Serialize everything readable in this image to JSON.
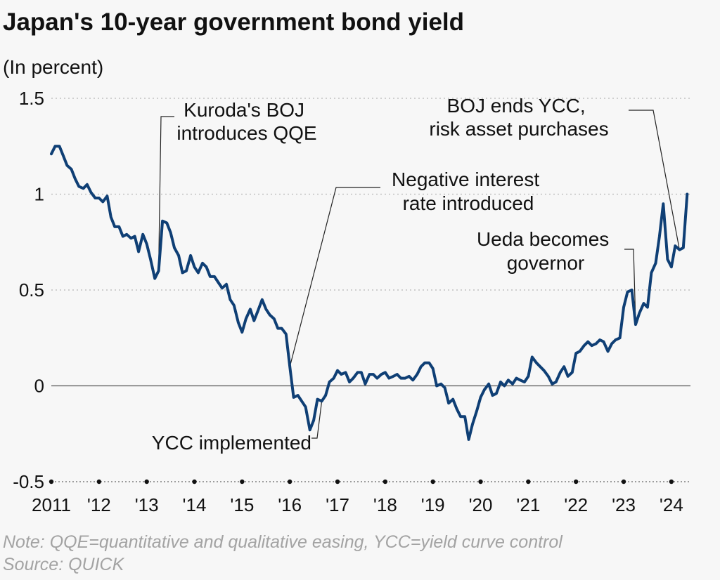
{
  "title": "Japan's 10-year government bond yield",
  "subtitle": "(In percent)",
  "note": "Note: QQE=quantitative and qualitative easing, YCC=yield curve control",
  "source": "Source: QUICK",
  "colors": {
    "line": "#0f3f75",
    "grid": "#b7b7b7",
    "background": "#f7f7f7"
  },
  "chart_data": {
    "type": "line",
    "title": "Japan's 10-year government bond yield",
    "ylabel": "(In percent)",
    "ylim": [
      -0.5,
      1.5
    ],
    "yticks": [
      -0.5,
      0,
      0.5,
      1,
      1.5
    ],
    "ytick_labels": [
      "-0.5",
      "0",
      "0.5",
      "1",
      "1.5"
    ],
    "xlim": [
      2011.0,
      2024.4
    ],
    "xticks": [
      2011,
      2012,
      2013,
      2014,
      2015,
      2016,
      2017,
      2018,
      2019,
      2020,
      2021,
      2022,
      2023,
      2024
    ],
    "xtick_labels": [
      "2011",
      "'12",
      "'13",
      "'14",
      "'15",
      "'16",
      "'17",
      "'18",
      "'19",
      "'20",
      "'21",
      "'22",
      "'23",
      "'24"
    ],
    "grid": "dotted horizontal",
    "series": [
      {
        "x": [
          2011.0,
          2011.08,
          2011.17,
          2011.25,
          2011.33,
          2011.42,
          2011.5,
          2011.58,
          2011.67,
          2011.75,
          2011.83,
          2011.92,
          2012.0,
          2012.08,
          2012.17,
          2012.25,
          2012.33,
          2012.42,
          2012.5,
          2012.58,
          2012.67,
          2012.75,
          2012.83,
          2012.92,
          2013.0,
          2013.08,
          2013.17,
          2013.25,
          2013.33,
          2013.42,
          2013.5,
          2013.58,
          2013.67,
          2013.75,
          2013.83,
          2013.92,
          2014.0,
          2014.08,
          2014.17,
          2014.25,
          2014.33,
          2014.42,
          2014.5,
          2014.58,
          2014.67,
          2014.75,
          2014.83,
          2014.92,
          2015.0,
          2015.08,
          2015.17,
          2015.25,
          2015.33,
          2015.42,
          2015.5,
          2015.58,
          2015.67,
          2015.75,
          2015.83,
          2015.92,
          2016.0,
          2016.08,
          2016.17,
          2016.25,
          2016.33,
          2016.42,
          2016.5,
          2016.58,
          2016.67,
          2016.75,
          2016.83,
          2016.92,
          2017.0,
          2017.08,
          2017.17,
          2017.25,
          2017.33,
          2017.42,
          2017.5,
          2017.58,
          2017.67,
          2017.75,
          2017.83,
          2017.92,
          2018.0,
          2018.08,
          2018.17,
          2018.25,
          2018.33,
          2018.42,
          2018.5,
          2018.58,
          2018.67,
          2018.75,
          2018.83,
          2018.92,
          2019.0,
          2019.08,
          2019.17,
          2019.25,
          2019.33,
          2019.42,
          2019.5,
          2019.58,
          2019.67,
          2019.75,
          2019.83,
          2019.92,
          2020.0,
          2020.08,
          2020.17,
          2020.25,
          2020.33,
          2020.42,
          2020.5,
          2020.58,
          2020.67,
          2020.75,
          2020.83,
          2020.92,
          2021.0,
          2021.08,
          2021.17,
          2021.25,
          2021.33,
          2021.42,
          2021.5,
          2021.58,
          2021.67,
          2021.75,
          2021.83,
          2021.92,
          2022.0,
          2022.08,
          2022.17,
          2022.25,
          2022.33,
          2022.42,
          2022.5,
          2022.58,
          2022.67,
          2022.75,
          2022.83,
          2022.92,
          2023.0,
          2023.08,
          2023.17,
          2023.25,
          2023.33,
          2023.42,
          2023.5,
          2023.58,
          2023.67,
          2023.75,
          2023.83,
          2023.92,
          2024.0,
          2024.08,
          2024.17,
          2024.25,
          2024.33
        ],
        "y": [
          1.21,
          1.25,
          1.25,
          1.2,
          1.15,
          1.13,
          1.08,
          1.04,
          1.03,
          1.05,
          1.01,
          0.98,
          0.98,
          0.96,
          0.99,
          0.88,
          0.83,
          0.83,
          0.78,
          0.79,
          0.77,
          0.78,
          0.7,
          0.79,
          0.74,
          0.66,
          0.56,
          0.6,
          0.86,
          0.85,
          0.8,
          0.72,
          0.68,
          0.59,
          0.6,
          0.68,
          0.62,
          0.59,
          0.64,
          0.62,
          0.57,
          0.57,
          0.54,
          0.51,
          0.53,
          0.45,
          0.42,
          0.33,
          0.28,
          0.35,
          0.4,
          0.34,
          0.39,
          0.45,
          0.4,
          0.37,
          0.35,
          0.3,
          0.3,
          0.27,
          0.1,
          -0.06,
          -0.05,
          -0.08,
          -0.11,
          -0.23,
          -0.18,
          -0.07,
          -0.08,
          -0.05,
          0.02,
          0.04,
          0.08,
          0.06,
          0.07,
          0.02,
          0.04,
          0.07,
          0.07,
          0.01,
          0.06,
          0.06,
          0.04,
          0.06,
          0.07,
          0.04,
          0.05,
          0.06,
          0.04,
          0.04,
          0.05,
          0.03,
          0.06,
          0.1,
          0.12,
          0.12,
          0.09,
          0.0,
          0.01,
          -0.01,
          -0.09,
          -0.07,
          -0.12,
          -0.16,
          -0.16,
          -0.28,
          -0.2,
          -0.13,
          -0.06,
          -0.02,
          0.01,
          -0.05,
          -0.04,
          0.02,
          0.0,
          0.03,
          0.01,
          0.04,
          0.03,
          0.02,
          0.05,
          0.15,
          0.12,
          0.1,
          0.08,
          0.05,
          0.01,
          0.02,
          0.07,
          0.1,
          0.05,
          0.07,
          0.17,
          0.18,
          0.21,
          0.23,
          0.21,
          0.22,
          0.24,
          0.23,
          0.18,
          0.22,
          0.24,
          0.25,
          0.41,
          0.49,
          0.5,
          0.32,
          0.38,
          0.43,
          0.41,
          0.59,
          0.64,
          0.78,
          0.95,
          0.66,
          0.62,
          0.73,
          0.71,
          0.72,
          1.0
        ]
      }
    ],
    "annotations": [
      {
        "lines": [
          "Kuroda's BOJ",
          "introduces QQE"
        ],
        "x": 2013.25,
        "y": 0.6
      },
      {
        "lines": [
          "Negative interest",
          "rate introduced"
        ],
        "x": 2016.0,
        "y": 0.1
      },
      {
        "lines": [
          "YCC implemented"
        ],
        "x": 2016.67,
        "y": -0.08
      },
      {
        "lines": [
          "Ueda becomes",
          "governor"
        ],
        "x": 2023.25,
        "y": 0.32
      },
      {
        "lines": [
          "BOJ ends YCC,",
          "risk asset purchases"
        ],
        "x": 2024.17,
        "y": 0.71
      }
    ]
  }
}
